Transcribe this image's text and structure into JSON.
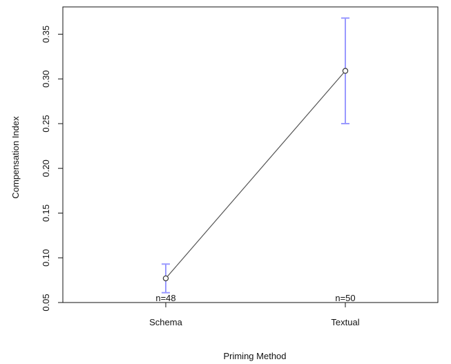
{
  "chart_data": {
    "type": "line",
    "categories": [
      "Schema",
      "Textual"
    ],
    "values": [
      0.077,
      0.309
    ],
    "error_bars": [
      {
        "lower": 0.061,
        "upper": 0.093
      },
      {
        "lower": 0.25,
        "upper": 0.368
      }
    ],
    "n_labels": [
      "n=48",
      "n=50"
    ],
    "xlabel": "Priming Method",
    "ylabel": "Compensation Index",
    "ylim": [
      0.05,
      0.37
    ],
    "yticks": [
      0.05,
      0.1,
      0.15,
      0.2,
      0.25,
      0.3,
      0.35
    ],
    "ytick_labels": [
      "0.05",
      "0.10",
      "0.15",
      "0.20",
      "0.25",
      "0.30",
      "0.35"
    ],
    "grid": false,
    "colors": {
      "line": "#555555",
      "marker": "#333333",
      "error_bar": "#9999ff",
      "axis": "#111111"
    }
  }
}
